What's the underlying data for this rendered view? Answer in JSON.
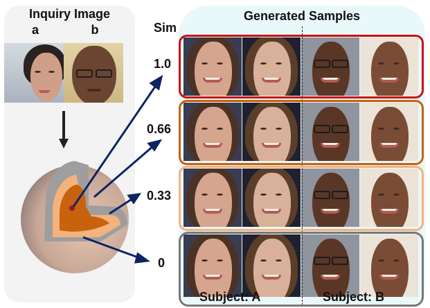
{
  "left_panel": {
    "title": "Inquiry Image",
    "labels": [
      "a",
      "b"
    ],
    "inquiry_images": [
      {
        "id": "a",
        "description": "woman-profile",
        "bg": "#c9ced6",
        "skin": "#d2a58f",
        "hair": "#2a2221"
      },
      {
        "id": "b",
        "description": "man-with-glasses",
        "bg": "#d9c79a",
        "skin": "#6b4532",
        "hair": "#3a2a1f"
      }
    ],
    "sphere": {
      "outer_color": "#c8a898",
      "shell_color": "#9e9e9e",
      "mid_color": "#f4b27d",
      "core_color": "#c8620e",
      "center_dot_color": "#9a1a28"
    }
  },
  "similarity": {
    "header": "Sim",
    "levels": [
      "1.0",
      "0.66",
      "0.33",
      "0"
    ],
    "arrow_color": "#0d2464"
  },
  "generated": {
    "title": "Generated Samples",
    "subjects": [
      "Subject: A",
      "Subject: B"
    ],
    "rows": [
      {
        "sim": "1.0",
        "border_color": "#cc1010"
      },
      {
        "sim": "0.66",
        "border_color": "#c8620e"
      },
      {
        "sim": "0.33",
        "border_color": "#f4b27d"
      },
      {
        "sim": "0",
        "border_color": "#777777"
      }
    ],
    "faces": [
      {
        "subject": "A",
        "bg": "#3a3c52",
        "skin": "#d6a58e",
        "hair": "#4a3326",
        "glasses": false
      },
      {
        "subject": "A",
        "bg": "#1f2030",
        "skin": "#d9b09a",
        "hair": "#5a3e2a",
        "glasses": false
      },
      {
        "subject": "B",
        "bg": "#8f949e",
        "skin": "#5a3626",
        "hair": null,
        "glasses": true
      },
      {
        "subject": "B",
        "bg": "#ece3d8",
        "skin": "#7a4c35",
        "hair": null,
        "glasses": false
      }
    ]
  }
}
